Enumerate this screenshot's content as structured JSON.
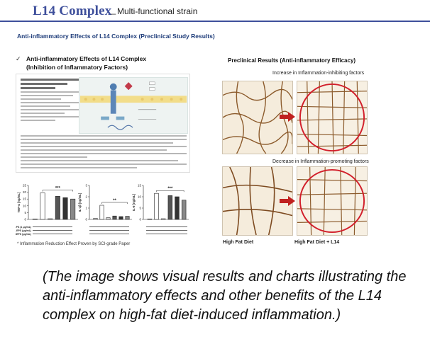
{
  "header": {
    "brand": "L14 Complex",
    "separator": "_",
    "subtitle": "Multi-functional strain"
  },
  "slide_title": "Anti-inflammatory Effects of L14 Complex (Preclinical Study Results)",
  "left": {
    "check_icon": "check-icon",
    "heading_line1": "Anti-inflammatory Effects of L14 Complex",
    "heading_line2": "(Inhibition of Inflammatory Factors)",
    "footnote": "* Inflammation Reduction Effect Proven by SCI-grade Paper",
    "chart_data": [
      {
        "type": "bar",
        "ylabel": "TNF-α [ng/mL]",
        "ylim": [
          0,
          25
        ],
        "yticks": [
          "0",
          "5",
          "10",
          "15",
          "20",
          "25"
        ],
        "values": [
          0.3,
          19.5,
          0.5,
          17,
          16,
          15
        ],
        "significance": "***"
      },
      {
        "type": "bar",
        "ylabel": "IL-1β [ng/mL]",
        "ylim": [
          0,
          3
        ],
        "yticks": [
          "0",
          "1",
          "2",
          "3"
        ],
        "values": [
          0.1,
          1.25,
          0.15,
          0.3,
          0.25,
          0.28
        ],
        "significance": "**"
      },
      {
        "type": "bar",
        "ylabel": "IL-6 [ng/mL]",
        "ylim": [
          0,
          15
        ],
        "yticks": [
          "0",
          "5",
          "10",
          "15"
        ],
        "values": [
          0.2,
          11.5,
          0.3,
          10.5,
          10,
          8.5
        ],
        "significance": "***"
      }
    ],
    "row_labels": [
      "LPS (1 μg/mL)",
      "LEPS (μg/mL)",
      "SEPS (μg/mL)"
    ]
  },
  "right": {
    "heading": "Preclinical Results (Anti-inflammatory Efficacy)",
    "caption_top": "Increase in Inflammation-inhibiting factors",
    "caption_bottom": "Decrease in Inflammation-promoting factors",
    "label_left": "High Fat Diet",
    "label_right": "High Fat Diet + L14",
    "arrow_color": "#c0201f",
    "ellipse_color": "#d21f2b"
  },
  "description": "(The image shows visual results and charts illustrating the anti-inflammatory effects and other benefits of the L14 complex on high-fat diet-induced inflammation.)",
  "colors": {
    "brand": "#3e4f9b",
    "title": "#1f3d7a"
  }
}
